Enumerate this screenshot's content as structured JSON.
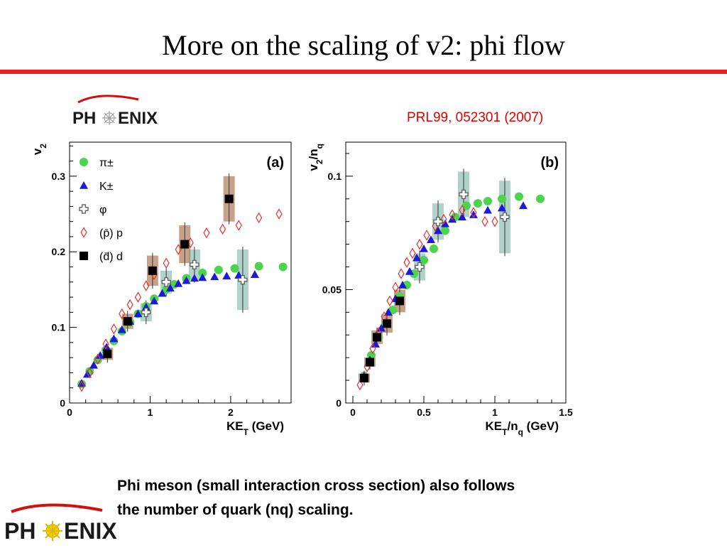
{
  "slide": {
    "title": "More on the scaling of v2: phi flow",
    "citation": "PRL99, 052301 (2007)",
    "caption_line1": "Phi meson (small interaction cross section) also follows",
    "caption_line2": "the number of quark (nq) scaling.",
    "logo_text_left": "PH",
    "logo_text_right": "ENIX"
  },
  "colors": {
    "pion": "#4cd44c",
    "kaon": "#1a1ad8",
    "phi": "#555555",
    "proton": "#e83030",
    "deuteron": "#000000",
    "phi_box": "#8fbfb0",
    "deut_box": "#b07a55",
    "rule": "#ee1c1c"
  },
  "chart_data": [
    {
      "type": "scatter",
      "panel_label": "(a)",
      "xlabel": "KE",
      "xlabel_sub": "T",
      "xlabel_unit": " (GeV)",
      "ylabel": "v",
      "ylabel_sub": "2",
      "xlim": [
        0,
        2.75
      ],
      "ylim": [
        0,
        0.345
      ],
      "xticks": [
        0,
        1,
        2
      ],
      "xtick_labels": [
        "0",
        "1",
        "2"
      ],
      "yticks": [
        0,
        0.1,
        0.2,
        0.3
      ],
      "ytick_labels": [
        "0",
        "0.1",
        "0.2",
        "0.3"
      ],
      "legend": [
        "π±",
        "K±",
        "φ",
        "(p̄) p",
        "(d̄) d"
      ],
      "legend_position": "top-left",
      "series": [
        {
          "name": "π±",
          "marker": "circle",
          "x": [
            0.15,
            0.25,
            0.35,
            0.45,
            0.55,
            0.65,
            0.75,
            0.85,
            0.95,
            1.05,
            1.2,
            1.3,
            1.45,
            1.65,
            1.85,
            2.05,
            2.35,
            2.65
          ],
          "y": [
            0.025,
            0.042,
            0.057,
            0.07,
            0.082,
            0.095,
            0.107,
            0.118,
            0.128,
            0.138,
            0.15,
            0.157,
            0.165,
            0.172,
            0.176,
            0.178,
            0.181,
            0.18
          ]
        },
        {
          "name": "K±",
          "marker": "triangle",
          "x": [
            0.15,
            0.22,
            0.3,
            0.38,
            0.46,
            0.55,
            0.65,
            0.75,
            0.85,
            0.95,
            1.05,
            1.15,
            1.25,
            1.35,
            1.45,
            1.55,
            1.65,
            1.8,
            1.95,
            2.1,
            2.3
          ],
          "y": [
            0.026,
            0.038,
            0.05,
            0.063,
            0.074,
            0.085,
            0.097,
            0.108,
            0.118,
            0.127,
            0.135,
            0.145,
            0.152,
            0.158,
            0.162,
            0.165,
            0.166,
            0.167,
            0.168,
            0.169,
            0.17
          ]
        },
        {
          "name": "φ",
          "marker": "cross",
          "x": [
            0.95,
            1.2,
            1.55,
            2.15
          ],
          "y": [
            0.12,
            0.16,
            0.183,
            0.163
          ],
          "err": [
            0.012,
            0.015,
            0.02,
            0.04
          ]
        },
        {
          "name": "(p̄) p",
          "marker": "diamond",
          "x": [
            0.15,
            0.25,
            0.35,
            0.45,
            0.55,
            0.65,
            0.75,
            0.85,
            0.95,
            1.05,
            1.2,
            1.35,
            1.5,
            1.7,
            1.9,
            2.1,
            2.35,
            2.6
          ],
          "y": [
            0.022,
            0.04,
            0.058,
            0.078,
            0.098,
            0.118,
            0.13,
            0.14,
            0.155,
            0.17,
            0.185,
            0.203,
            0.212,
            0.225,
            0.23,
            0.235,
            0.245,
            0.25
          ]
        },
        {
          "name": "(d̄) d",
          "marker": "square",
          "x": [
            0.47,
            0.72,
            1.03,
            1.43,
            1.98
          ],
          "y": [
            0.065,
            0.108,
            0.175,
            0.21,
            0.27
          ],
          "err": [
            0.008,
            0.01,
            0.02,
            0.025,
            0.03
          ]
        }
      ]
    },
    {
      "type": "scatter",
      "panel_label": "(b)",
      "xlabel": "KE",
      "xlabel_sub": "T",
      "xlabel_mid": "/n",
      "xlabel_sub2": "q",
      "xlabel_unit": " (GeV)",
      "ylabel": "v",
      "ylabel_sub": "2",
      "ylabel_mid": "/n",
      "ylabel_sub2": "q",
      "xlim": [
        -0.05,
        1.5
      ],
      "ylim": [
        0,
        0.115
      ],
      "xticks": [
        0,
        0.5,
        1,
        1.5
      ],
      "xtick_labels": [
        "0",
        "0.5",
        "1",
        "1.5"
      ],
      "yticks": [
        0,
        0.05,
        0.1
      ],
      "ytick_labels": [
        "0",
        "0.05",
        "0.1"
      ],
      "series": [
        {
          "name": "π±",
          "marker": "circle",
          "x": [
            0.08,
            0.13,
            0.18,
            0.23,
            0.28,
            0.33,
            0.38,
            0.43,
            0.5,
            0.57,
            0.65,
            0.72,
            0.8,
            0.88,
            0.95,
            1.05,
            1.17,
            1.32
          ],
          "y": [
            0.012,
            0.021,
            0.029,
            0.035,
            0.041,
            0.047,
            0.052,
            0.057,
            0.063,
            0.068,
            0.076,
            0.082,
            0.087,
            0.088,
            0.089,
            0.09,
            0.091,
            0.09
          ]
        },
        {
          "name": "K±",
          "marker": "triangle",
          "x": [
            0.08,
            0.12,
            0.16,
            0.2,
            0.25,
            0.3,
            0.35,
            0.4,
            0.45,
            0.5,
            0.55,
            0.6,
            0.65,
            0.7,
            0.77,
            0.85,
            0.95,
            1.05,
            1.2
          ],
          "y": [
            0.012,
            0.019,
            0.026,
            0.033,
            0.04,
            0.046,
            0.052,
            0.058,
            0.064,
            0.068,
            0.072,
            0.076,
            0.079,
            0.081,
            0.082,
            0.083,
            0.085,
            0.086,
            0.087
          ]
        },
        {
          "name": "φ",
          "marker": "cross",
          "x": [
            0.47,
            0.6,
            0.78,
            1.07
          ],
          "y": [
            0.06,
            0.08,
            0.092,
            0.082
          ],
          "err": [
            0.006,
            0.008,
            0.01,
            0.016
          ]
        },
        {
          "name": "(p̄) p",
          "marker": "diamond",
          "x": [
            0.05,
            0.1,
            0.14,
            0.18,
            0.22,
            0.26,
            0.3,
            0.34,
            0.38,
            0.42,
            0.47,
            0.52,
            0.58,
            0.64,
            0.7,
            0.77,
            0.85,
            0.93,
            1.0
          ],
          "y": [
            0.008,
            0.016,
            0.024,
            0.031,
            0.038,
            0.045,
            0.051,
            0.057,
            0.062,
            0.066,
            0.07,
            0.074,
            0.078,
            0.081,
            0.083,
            0.085,
            0.084,
            0.08,
            0.08
          ]
        },
        {
          "name": "(d̄) d",
          "marker": "square",
          "x": [
            0.08,
            0.12,
            0.17,
            0.24,
            0.33
          ],
          "y": [
            0.011,
            0.018,
            0.029,
            0.035,
            0.045
          ],
          "err": [
            0.002,
            0.002,
            0.003,
            0.004,
            0.005
          ]
        }
      ]
    }
  ]
}
